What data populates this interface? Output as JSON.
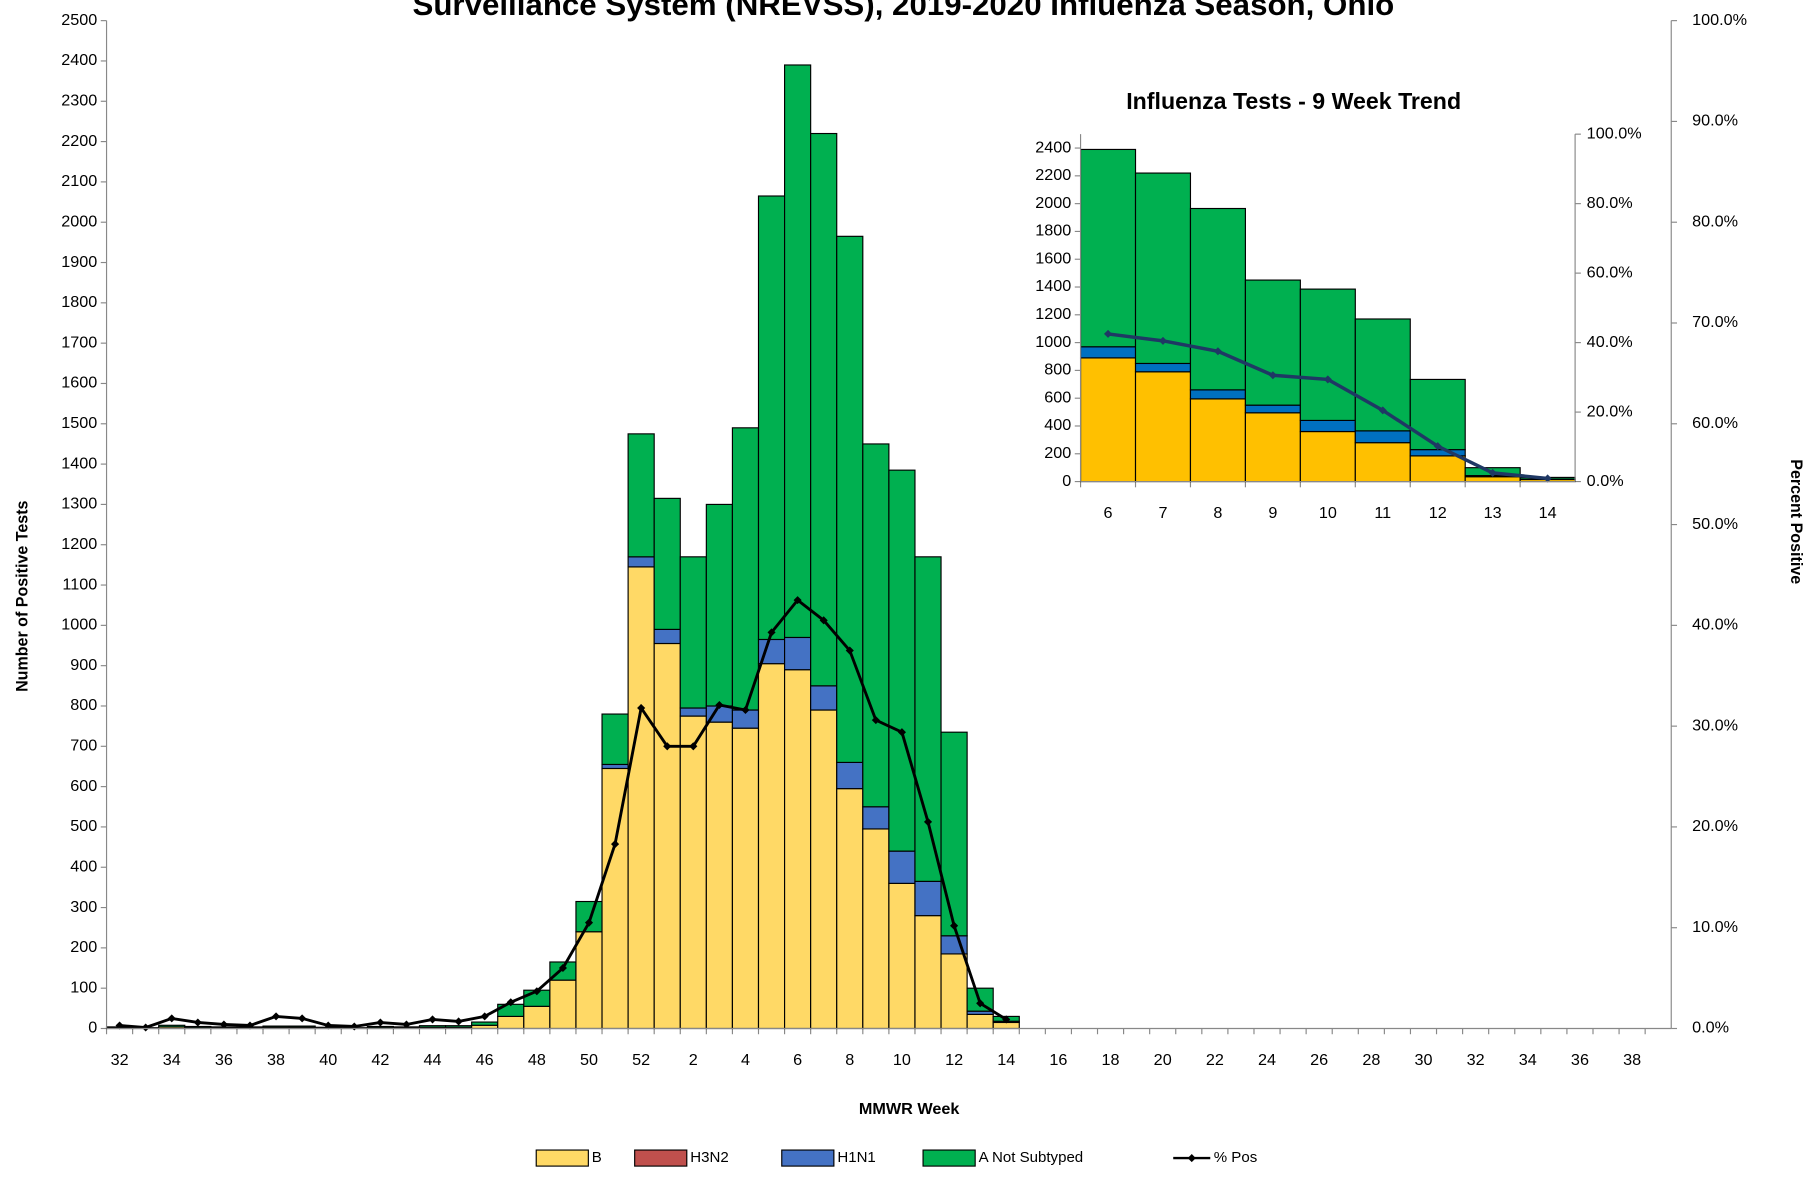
{
  "chart_data": [
    {
      "type": "bar",
      "stacked": true,
      "title": "Surveillance System (NREVSS), 2019-2020 Influenza Season, Ohio",
      "x_label": "MMWR Week",
      "y_label": "Number of Positive Tests",
      "y2_label": "Percent Positive",
      "categories": [
        32,
        null,
        34,
        null,
        36,
        null,
        38,
        null,
        40,
        null,
        42,
        null,
        44,
        null,
        46,
        null,
        48,
        null,
        50,
        null,
        52,
        null,
        2,
        null,
        4,
        null,
        6,
        null,
        8,
        null,
        10,
        null,
        12,
        null,
        14,
        null,
        16,
        null,
        18,
        null,
        20,
        null,
        22,
        null,
        24,
        null,
        26,
        null,
        28,
        null,
        30,
        null,
        32,
        null,
        34,
        null,
        36,
        null,
        38,
        null
      ],
      "series": [
        {
          "name": "B",
          "color": "#ffd966",
          "values": [
            2,
            1,
            4,
            2,
            2,
            2,
            3,
            3,
            1,
            1,
            2,
            2,
            3,
            3,
            8,
            30,
            55,
            120,
            240,
            645,
            1145,
            955,
            775,
            760,
            745,
            905,
            890,
            790,
            595,
            495,
            360,
            280,
            185,
            35,
            15,
            null,
            null,
            null,
            null,
            null,
            null,
            null,
            null,
            null,
            null,
            null,
            null,
            null,
            null,
            null,
            null,
            null,
            null,
            null,
            null,
            null,
            null,
            null,
            null,
            null
          ]
        },
        {
          "name": "H3N2",
          "color": "#c0504d",
          "values": [
            0,
            0,
            0,
            0,
            0,
            0,
            0,
            0,
            0,
            0,
            0,
            0,
            0,
            0,
            0,
            0,
            0,
            0,
            0,
            0,
            0,
            0,
            0,
            0,
            0,
            0,
            0,
            0,
            0,
            0,
            0,
            0,
            0,
            0,
            0,
            null,
            null,
            null,
            null,
            null,
            null,
            null,
            null,
            null,
            null,
            null,
            null,
            null,
            null,
            null,
            null,
            null,
            null,
            null,
            null,
            null,
            null,
            null,
            null,
            null
          ]
        },
        {
          "name": "H1N1",
          "color": "#4472c4",
          "values": [
            0,
            0,
            0,
            0,
            0,
            0,
            0,
            0,
            0,
            0,
            0,
            0,
            0,
            0,
            0,
            0,
            0,
            0,
            0,
            10,
            25,
            35,
            20,
            40,
            45,
            60,
            80,
            60,
            65,
            55,
            80,
            85,
            45,
            8,
            3,
            null,
            null,
            null,
            null,
            null,
            null,
            null,
            null,
            null,
            null,
            null,
            null,
            null,
            null,
            null,
            null,
            null,
            null,
            null,
            null,
            null,
            null,
            null,
            null,
            null
          ]
        },
        {
          "name": "A Not Subtyped",
          "color": "#00b050",
          "values": [
            2,
            1,
            4,
            3,
            2,
            2,
            3,
            3,
            2,
            1,
            3,
            2,
            4,
            4,
            8,
            30,
            40,
            45,
            75,
            125,
            305,
            325,
            375,
            500,
            700,
            1100,
            1420,
            1370,
            1305,
            900,
            945,
            805,
            505,
            57,
            12,
            null,
            null,
            null,
            null,
            null,
            null,
            null,
            null,
            null,
            null,
            null,
            null,
            null,
            null,
            null,
            null,
            null,
            null,
            null,
            null,
            null,
            null,
            null,
            null,
            null
          ]
        },
        {
          "name": "% Pos",
          "type": "line",
          "axis": "y2",
          "color": "#000000",
          "values": [
            0.3,
            0.1,
            1.0,
            0.6,
            0.4,
            0.3,
            1.2,
            1.0,
            0.3,
            0.2,
            0.6,
            0.4,
            0.9,
            0.7,
            1.2,
            2.6,
            3.7,
            6.0,
            10.5,
            18.3,
            31.8,
            28.0,
            28.0,
            32.1,
            31.6,
            39.3,
            42.5,
            40.5,
            37.5,
            30.6,
            29.4,
            20.5,
            10.2,
            2.5,
            0.9,
            null,
            null,
            null,
            null,
            null,
            null,
            null,
            null,
            null,
            null,
            null,
            null,
            null,
            null,
            null,
            null,
            null,
            null,
            null,
            null,
            null,
            null,
            null,
            null,
            null
          ]
        }
      ],
      "ylim": [
        0,
        2500
      ],
      "yticks": [
        0,
        100,
        200,
        300,
        400,
        500,
        600,
        700,
        800,
        900,
        1000,
        1100,
        1200,
        1300,
        1400,
        1500,
        1600,
        1700,
        1800,
        1900,
        2000,
        2100,
        2200,
        2300,
        2400,
        2500
      ],
      "y2lim": [
        0,
        100
      ],
      "y2ticks": [
        {
          "value": 0,
          "label": "0.0%"
        },
        {
          "value": 10,
          "label": "10.0%"
        },
        {
          "value": 20,
          "label": "20.0%"
        },
        {
          "value": 30,
          "label": "30.0%"
        },
        {
          "value": 40,
          "label": "40.0%"
        },
        {
          "value": 50,
          "label": "50.0%"
        },
        {
          "value": 60,
          "label": "60.0%"
        },
        {
          "value": 70,
          "label": "70.0%"
        },
        {
          "value": 80,
          "label": "80.0%"
        },
        {
          "value": 90,
          "label": "90.0%"
        },
        {
          "value": 100,
          "label": "100.0%"
        }
      ],
      "legend": "bottom"
    },
    {
      "type": "bar",
      "stacked": true,
      "title": "Influenza Tests - 9 Week Trend",
      "categories": [
        6,
        7,
        8,
        9,
        10,
        11,
        12,
        13,
        14
      ],
      "series": [
        {
          "name": "B",
          "color": "#ffc000",
          "values": [
            890,
            790,
            595,
            495,
            360,
            280,
            185,
            35,
            15
          ]
        },
        {
          "name": "H3N2",
          "color": "#c0504d",
          "values": [
            0,
            0,
            0,
            0,
            0,
            0,
            0,
            0,
            0
          ]
        },
        {
          "name": "H1N1",
          "color": "#0070c0",
          "values": [
            80,
            60,
            65,
            55,
            80,
            85,
            45,
            8,
            3
          ]
        },
        {
          "name": "A Not Subtyped",
          "color": "#00b050",
          "values": [
            1420,
            1370,
            1305,
            900,
            945,
            805,
            505,
            57,
            12
          ]
        },
        {
          "name": "% Pos",
          "type": "line",
          "axis": "y2",
          "color": "#1f3864",
          "values": [
            42.5,
            40.5,
            37.5,
            30.6,
            29.4,
            20.5,
            10.2,
            2.5,
            0.9
          ]
        }
      ],
      "ylim": [
        0,
        2500
      ],
      "yticks": [
        0,
        200,
        400,
        600,
        800,
        1000,
        1200,
        1400,
        1600,
        1800,
        2000,
        2200,
        2400
      ],
      "y2lim": [
        0,
        100
      ],
      "y2ticks": [
        {
          "value": 0,
          "label": "0.0%"
        },
        {
          "value": 20,
          "label": "20.0%"
        },
        {
          "value": 40,
          "label": "40.0%"
        },
        {
          "value": 60,
          "label": "60.0%"
        },
        {
          "value": 80,
          "label": "80.0%"
        },
        {
          "value": 100,
          "label": "100.0%"
        }
      ]
    }
  ]
}
